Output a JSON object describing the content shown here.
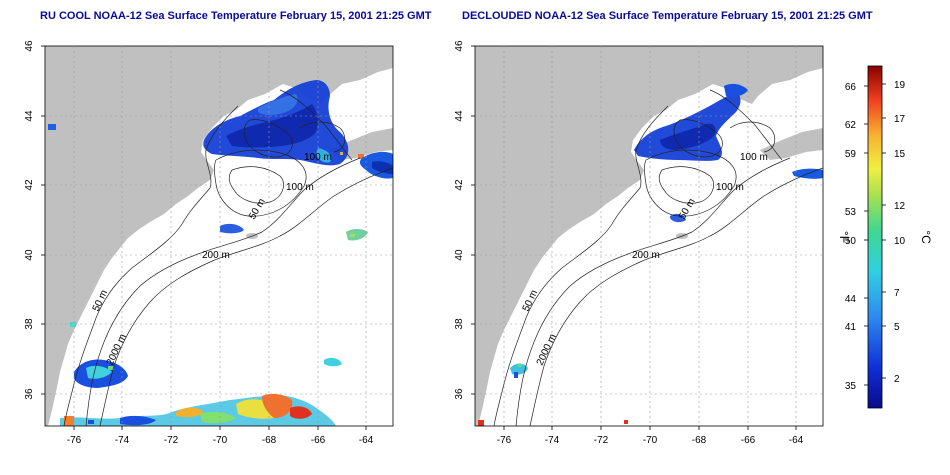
{
  "panels": [
    {
      "title": "RU COOL NOAA-12 Sea Surface Temperature February 15, 2001 21:25 GMT",
      "iso_labels": [
        "100 m",
        "50 m",
        "200 m",
        "50 m",
        "2000 m",
        "100 m"
      ],
      "lon_ticks": [
        "-76",
        "-74",
        "-72",
        "-70",
        "-68",
        "-66",
        "-64"
      ],
      "lat_ticks": [
        "46",
        "44",
        "42",
        "40",
        "38",
        "36"
      ]
    },
    {
      "title": "DECLOUDED NOAA-12 Sea Surface Temperature February 15, 2001 21:25 GMT",
      "iso_labels": [
        "100 m",
        "100 m",
        "50 m",
        "200 m",
        "50 m",
        "2000 m"
      ],
      "lon_ticks": [
        "-76",
        "-74",
        "-72",
        "-70",
        "-68",
        "-66",
        "-64"
      ],
      "lat_ticks": [
        "46",
        "44",
        "42",
        "40",
        "38",
        "36"
      ]
    }
  ],
  "colorbar": {
    "f_label": "°F",
    "c_label": "°C",
    "f_ticks": [
      "66",
      "62",
      "59",
      "53",
      "50",
      "44",
      "41",
      "35"
    ],
    "c_ticks": [
      "19",
      "17",
      "15",
      "12",
      "10",
      "7",
      "5",
      "2"
    ]
  },
  "colors": {
    "land": "#c0c0c0",
    "ocean": "#ffffff",
    "title": "#0a0a9a",
    "grid": "#9a9a9a"
  }
}
